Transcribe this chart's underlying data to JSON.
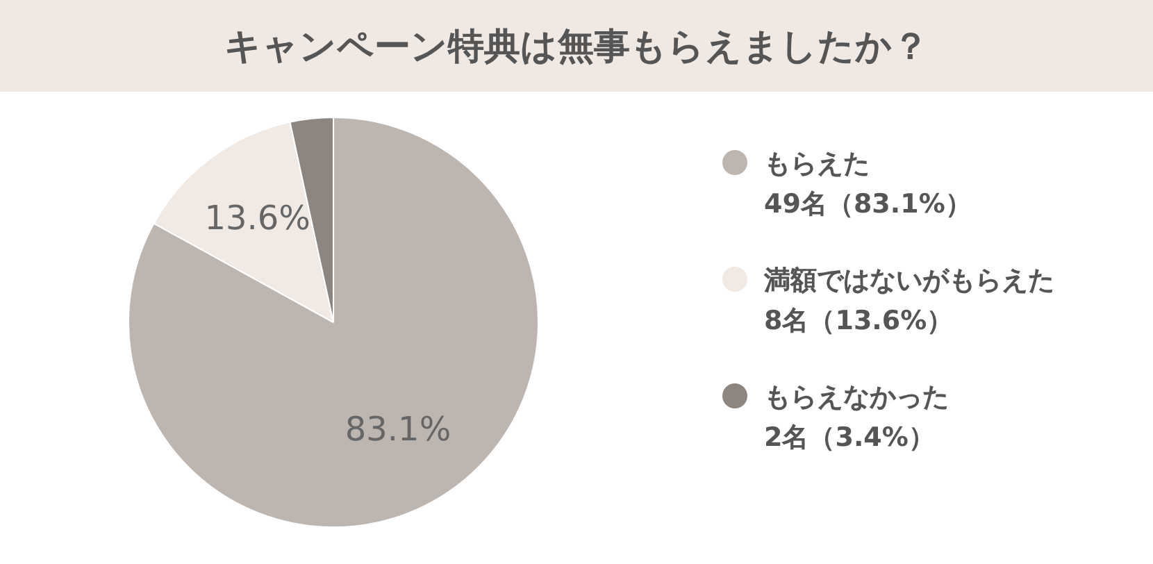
{
  "chart_data": {
    "type": "pie",
    "title": "キャンペーン特典は無事もらえましたか？",
    "categories": [
      "もらえた\n49名（83.1%）",
      "満額ではないがもらえた\n8名（13.6%）",
      "もらえなかった\n2名（3.4%）"
    ],
    "values": [
      83.1,
      13.6,
      3.4
    ],
    "colors": [
      "#bdb5b0",
      "#f0e9e4",
      "#8c8580"
    ],
    "value_labels": [
      "83.1%",
      "13.6%",
      null
    ],
    "legend": "right"
  }
}
